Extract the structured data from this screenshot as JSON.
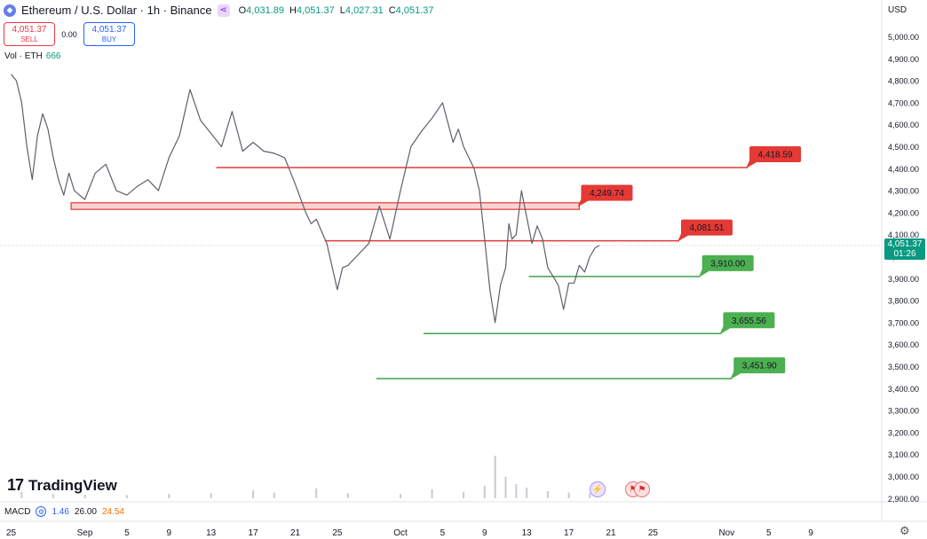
{
  "header": {
    "title": "Ethereum / U.S. Dollar · 1h · Binance",
    "ohlc": {
      "o_label": "O",
      "o": "4,031.89",
      "h_label": "H",
      "h": "4,051.37",
      "l_label": "L",
      "l": "4,027.31",
      "c_label": "C",
      "c": "4,051.37"
    }
  },
  "trade": {
    "sell_price": "4,051.37",
    "sell_label": "SELL",
    "spread": "0.00",
    "buy_price": "4,051.37",
    "buy_label": "BUY"
  },
  "volume": {
    "label": "Vol · ETH",
    "value": "666"
  },
  "macd": {
    "label": "MACD",
    "v1": "1.46",
    "v2": "26.00",
    "v3": "24.54"
  },
  "currency": "USD",
  "last_price": {
    "price": "4,051.37",
    "countdown": "01:26"
  },
  "brand": {
    "mark": "17",
    "name": "TradingView"
  },
  "colors": {
    "up": "#089981",
    "down": "#f23645",
    "resistance": "#e53935",
    "support": "#43a047",
    "label_red": "#e53935",
    "label_green": "#4caf50"
  },
  "chart_data": {
    "type": "line",
    "interval": "1h",
    "x_ticks": [
      "25",
      "Sep",
      "5",
      "9",
      "13",
      "17",
      "21",
      "25",
      "Oct",
      "5",
      "9",
      "13",
      "17",
      "21",
      "25",
      "Nov",
      "5",
      "9"
    ],
    "x_tick_days": [
      -7,
      0,
      4,
      8,
      12,
      16,
      20,
      24,
      30,
      34,
      38,
      42,
      46,
      50,
      54,
      61,
      65,
      69
    ],
    "y_ticks": [
      "5,000.00",
      "4,900.00",
      "4,800.00",
      "4,700.00",
      "4,600.00",
      "4,500.00",
      "4,400.00",
      "4,300.00",
      "4,200.00",
      "4,100.00",
      "4,000.00",
      "3,900.00",
      "3,800.00",
      "3,700.00",
      "3,600.00",
      "3,500.00",
      "3,400.00",
      "3,300.00",
      "3,200.00",
      "3,100.00",
      "3,000.00",
      "2,900.00"
    ],
    "ylim": [
      2880,
      5040
    ],
    "price_series": {
      "day": [
        -7.0,
        -6.5,
        -6.0,
        -5.5,
        -5.0,
        -4.5,
        -4.0,
        -3.5,
        -3.0,
        -2.5,
        -2.0,
        -1.5,
        -1.0,
        0.0,
        1.0,
        2.0,
        3.0,
        4.0,
        5.0,
        6.0,
        7.0,
        8.0,
        9.0,
        10.0,
        11.0,
        12.0,
        13.0,
        14.0,
        15.0,
        16.0,
        17.0,
        18.0,
        19.0,
        20.0,
        21.0,
        21.5,
        22.0,
        23.0,
        24.0,
        24.5,
        25.0,
        26.0,
        27.0,
        28.0,
        29.0,
        30.0,
        31.0,
        32.0,
        33.0,
        34.0,
        35.0,
        35.5,
        36.0,
        37.0,
        37.5,
        38.0,
        38.5,
        39.0,
        39.5,
        40.0,
        40.3,
        40.6,
        41.0,
        41.5,
        42.0,
        42.5,
        43.0,
        43.5,
        44.0,
        45.0,
        45.5,
        46.0,
        46.5,
        47.0,
        47.5,
        48.0,
        48.5,
        48.9
      ],
      "price": [
        4830,
        4800,
        4700,
        4500,
        4350,
        4550,
        4650,
        4580,
        4450,
        4350,
        4280,
        4380,
        4300,
        4260,
        4380,
        4420,
        4300,
        4280,
        4320,
        4350,
        4300,
        4450,
        4550,
        4760,
        4620,
        4560,
        4500,
        4660,
        4480,
        4520,
        4480,
        4470,
        4450,
        4330,
        4200,
        4150,
        4170,
        4060,
        3850,
        3950,
        3960,
        4010,
        4060,
        4230,
        4080,
        4300,
        4500,
        4570,
        4630,
        4700,
        4520,
        4580,
        4500,
        4400,
        4300,
        4080,
        3850,
        3700,
        3870,
        3950,
        4150,
        4080,
        4100,
        4300,
        4180,
        4060,
        4140,
        4080,
        3950,
        3870,
        3760,
        3880,
        3880,
        3960,
        3930,
        4000,
        4040,
        4051
      ]
    },
    "volume_series": {
      "day": [
        -6,
        -3,
        0,
        4,
        8,
        12,
        16,
        18,
        22,
        25,
        30,
        33,
        36,
        38,
        39,
        40,
        41,
        42,
        44,
        46,
        48
      ],
      "volume": [
        18,
        12,
        10,
        9,
        12,
        14,
        22,
        16,
        28,
        14,
        12,
        25,
        18,
        35,
        120,
        60,
        40,
        30,
        20,
        16,
        14
      ]
    },
    "levels": [
      {
        "label": "4,418.59",
        "price": 4405,
        "from_day": 12.5,
        "to_day": 63,
        "type": "resistance"
      },
      {
        "label": "4,249.74",
        "price": 4230,
        "from_day": -1.3,
        "to_day": 47,
        "type": "resistance_zone",
        "price_high": 4245,
        "price_low": 4215
      },
      {
        "label": "4,081.51",
        "price": 4072,
        "from_day": 22.8,
        "to_day": 56.5,
        "type": "resistance"
      },
      {
        "label": "3,910.00",
        "price": 3910,
        "from_day": 42.2,
        "to_day": 58.5,
        "type": "support"
      },
      {
        "label": "3,655.56",
        "price": 3650,
        "from_day": 32.2,
        "to_day": 60.5,
        "type": "support"
      },
      {
        "label": "3,451.90",
        "price": 3445,
        "from_day": 27.7,
        "to_day": 61.5,
        "type": "support"
      }
    ],
    "last_price": 4051.37,
    "macd": {
      "macd": 1.46,
      "signal": 26.0,
      "histogram": 24.54
    }
  }
}
